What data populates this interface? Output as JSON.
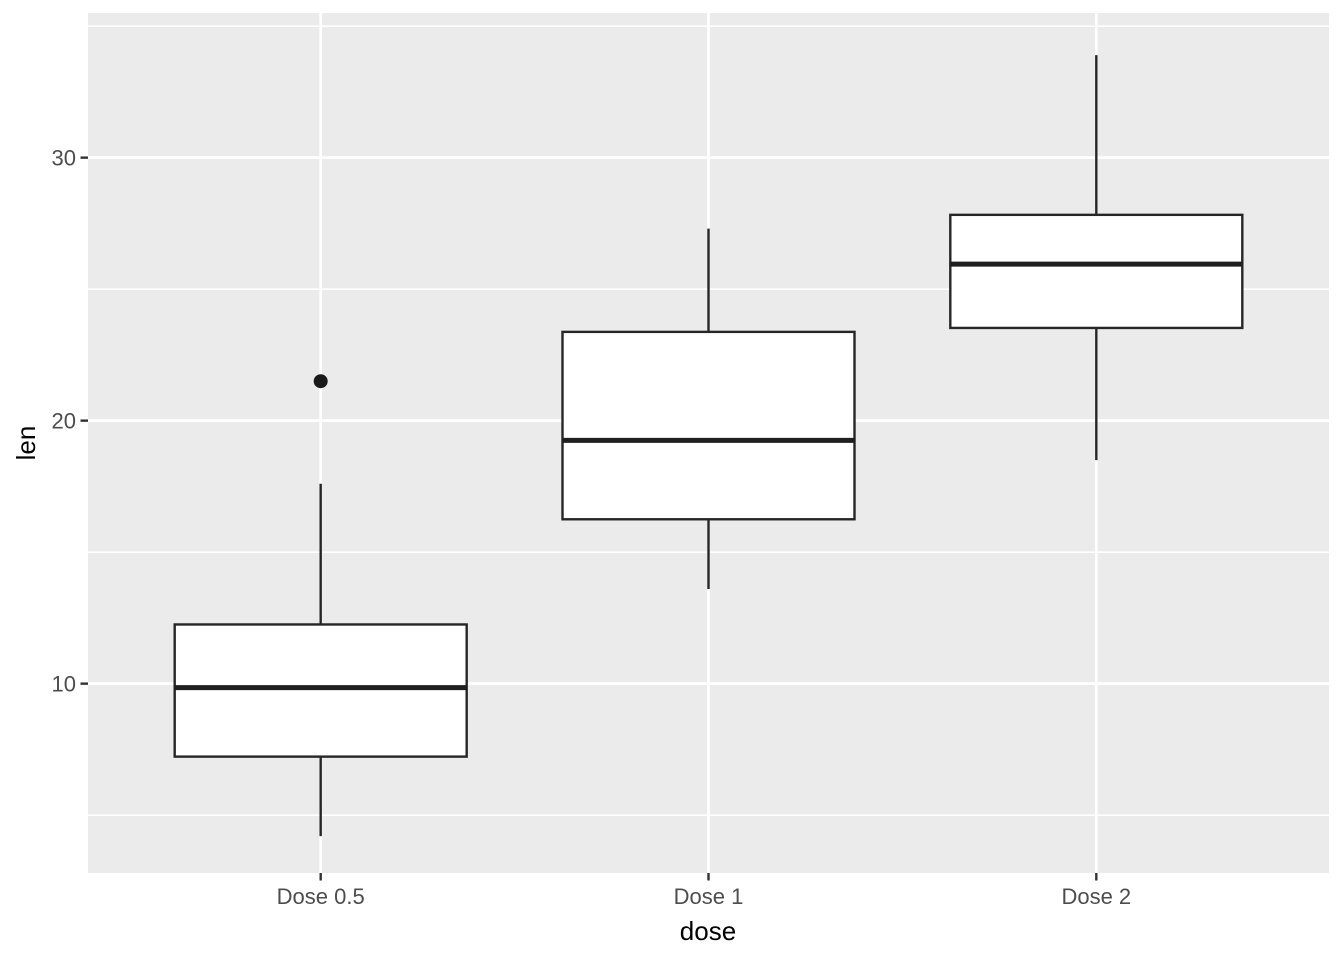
{
  "chart_data": {
    "type": "boxplot",
    "title": "",
    "xlabel": "dose",
    "ylabel": "len",
    "categories": [
      "Dose 0.5",
      "Dose 1",
      "Dose 2"
    ],
    "series": [
      {
        "name": "Dose 0.5",
        "whisker_low": 4.2,
        "q1": 7.225,
        "median": 9.85,
        "q3": 12.25,
        "whisker_high": 17.6,
        "outliers": [
          21.5
        ]
      },
      {
        "name": "Dose 1",
        "whisker_low": 13.6,
        "q1": 16.25,
        "median": 19.25,
        "q3": 23.375,
        "whisker_high": 27.3,
        "outliers": []
      },
      {
        "name": "Dose 2",
        "whisker_low": 18.5,
        "q1": 23.525,
        "median": 25.95,
        "q3": 27.825,
        "whisker_high": 33.9,
        "outliers": []
      }
    ],
    "y_axis": {
      "ticks": [
        10,
        20,
        30
      ],
      "tick_labels": [
        "10",
        "20",
        "30"
      ],
      "minor_ticks": [
        5,
        15,
        25,
        35
      ],
      "ylim": [
        2.8,
        35.5
      ]
    },
    "grid": true,
    "legend": false,
    "theme": "ggplot2-grey"
  },
  "style": {
    "panel_bg": "#EBEBEB",
    "grid_color": "#FFFFFF",
    "box_fill": "#FFFFFF",
    "box_stroke": "#262626",
    "median_stroke": "#1F1F1F",
    "outlier_fill": "#1A1A1A",
    "tick_mark_color": "#333333",
    "tick_label_color": "#4D4D4D",
    "axis_title_color": "#000000"
  }
}
